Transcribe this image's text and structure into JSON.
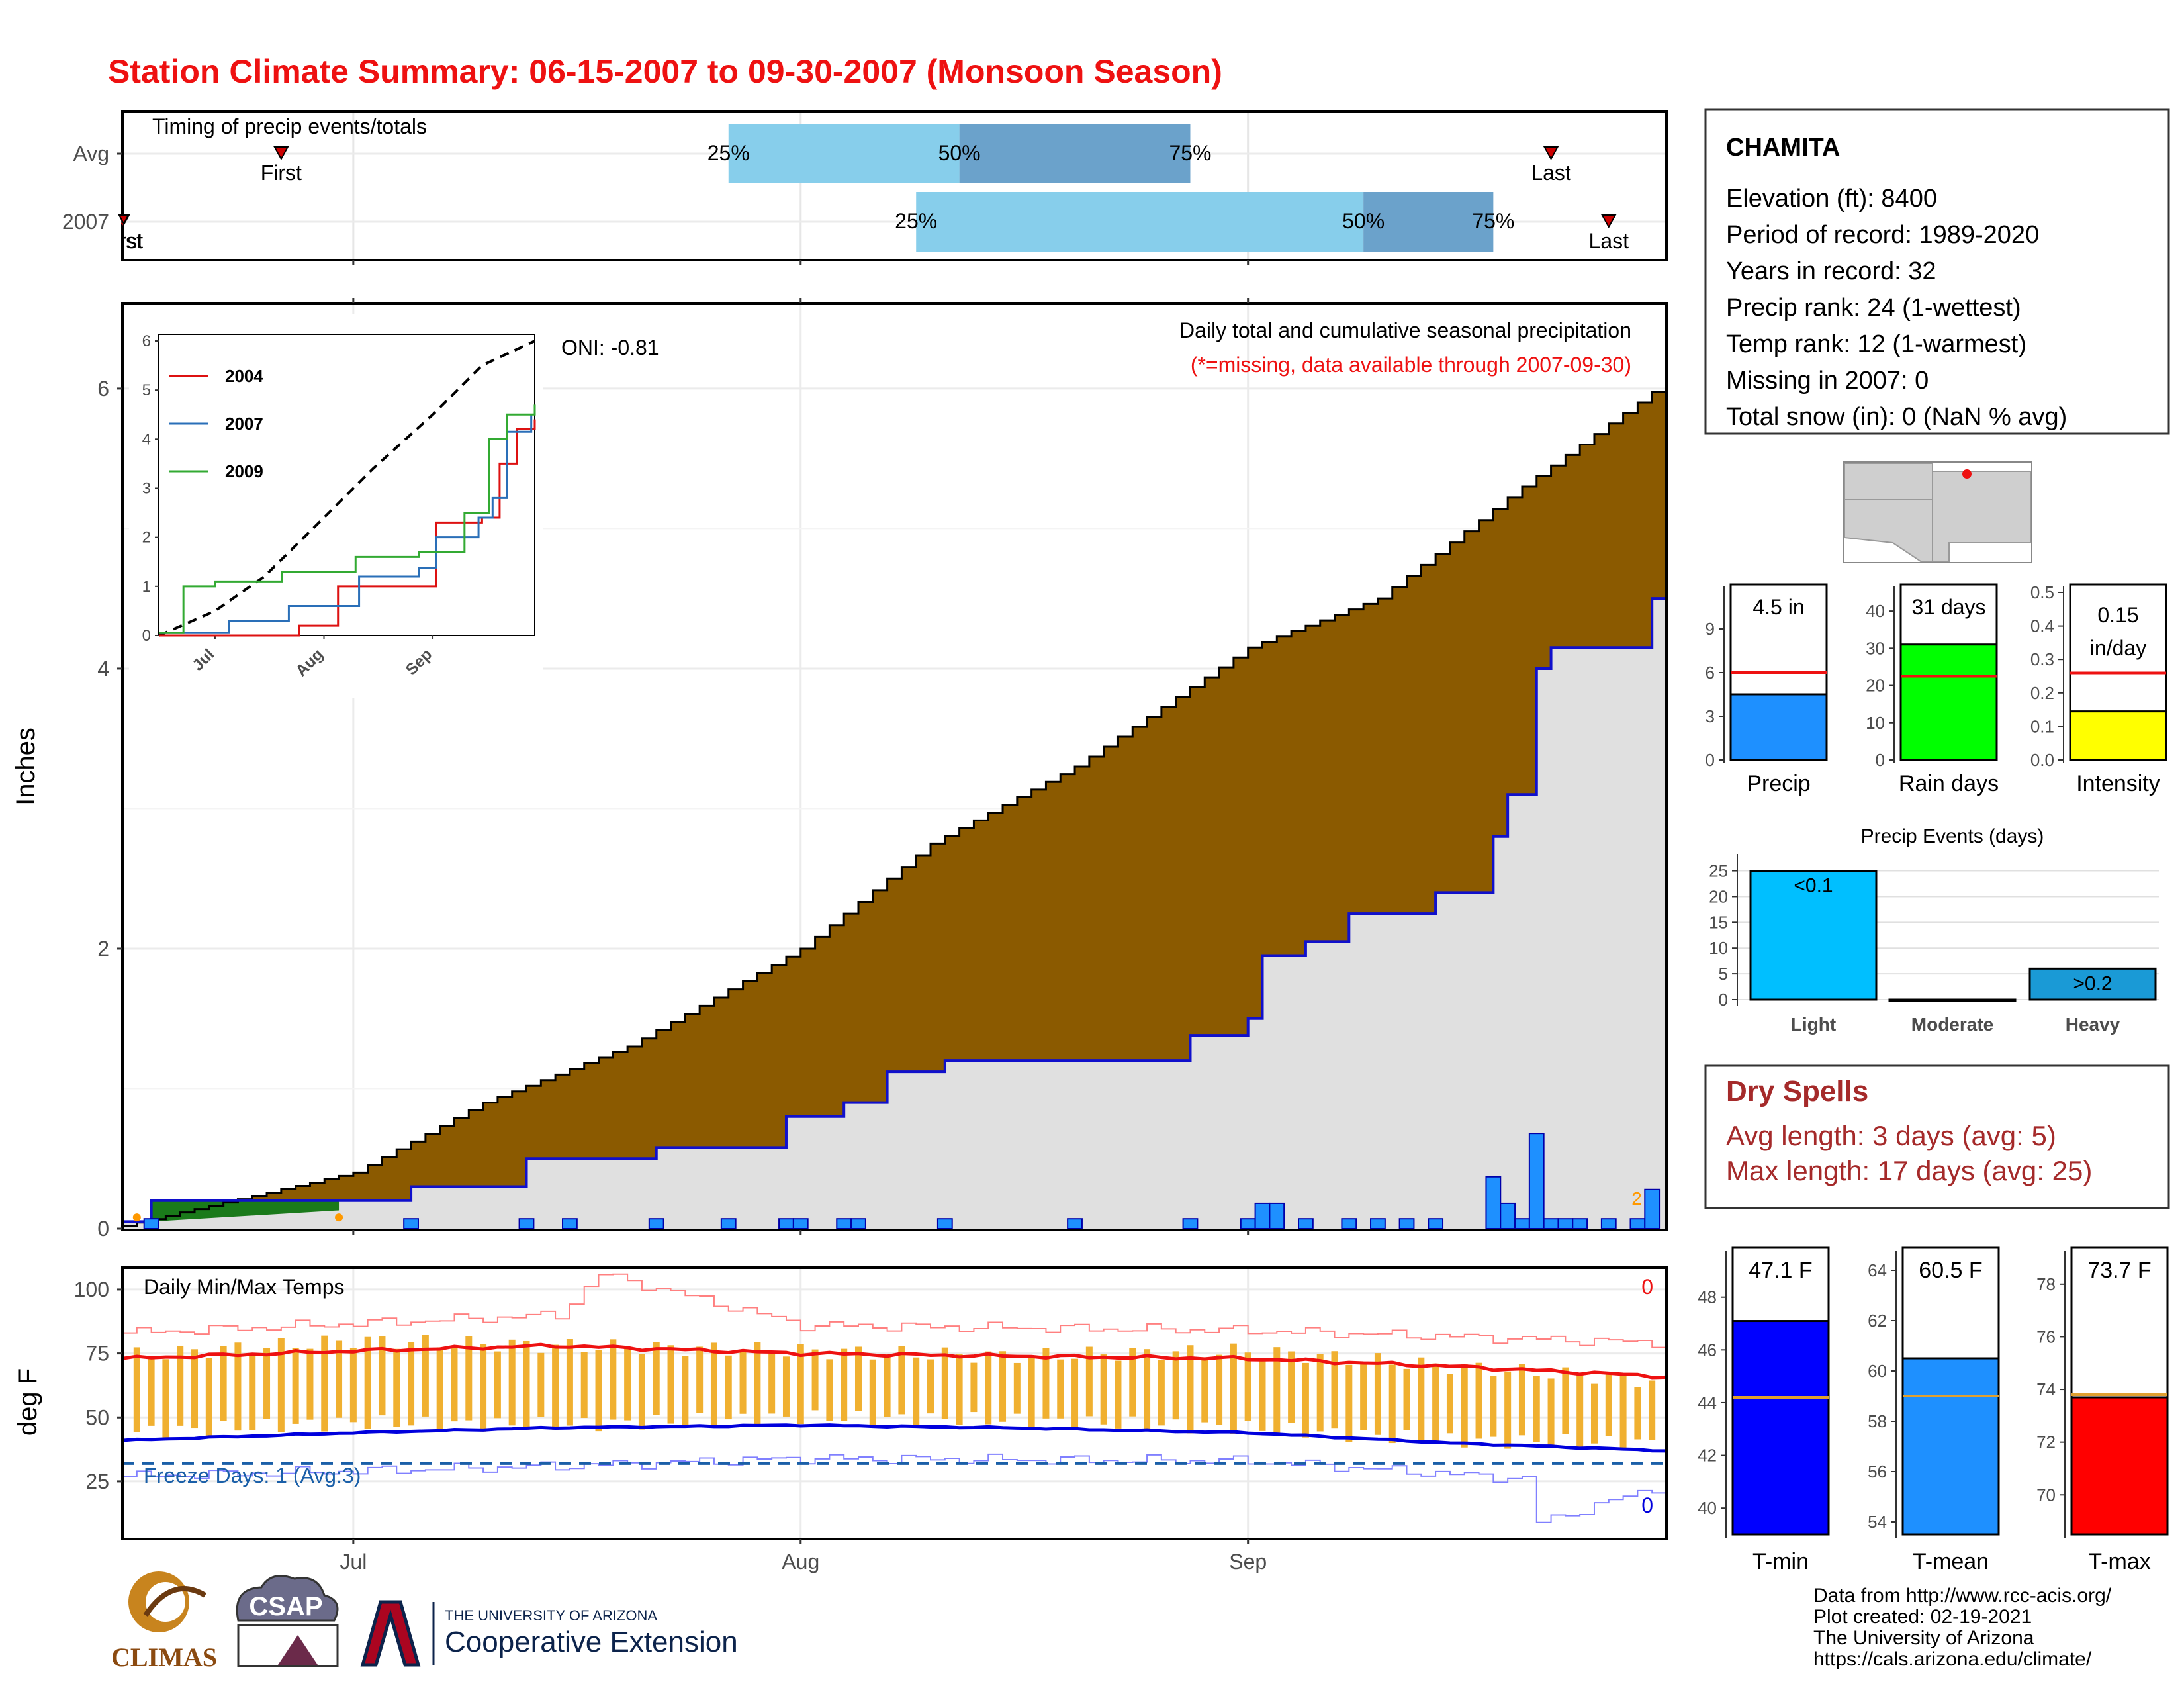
{
  "title": "Station Climate Summary: 06-15-2007 to 09-30-2007 (Monsoon Season)",
  "colors": {
    "title": "#ee1111",
    "cum_fill": "#8b5a00",
    "cum_2007_fill": "#e0e0e0",
    "cum_2007_line": "#1010cc",
    "daily_bar": "#1e90ff",
    "early_fill": "#1a7a1a",
    "timing_light": "#87ceeb",
    "timing_dark": "#6ba2cb",
    "tmin_line": "#0000dd",
    "tmax_line": "#ee1111",
    "range_bar": "#f0b030",
    "dry_spell": "#a52a2a"
  },
  "timing": {
    "label": "Timing of precip events/totals",
    "rows": [
      {
        "label": "Avg",
        "first": "First",
        "last": "Last",
        "p25": "25%",
        "p50": "50%",
        "p75": "75%",
        "first_date": "2007-06-26",
        "p25_date": "2007-07-27",
        "p50_date": "2007-08-12",
        "p75_date": "2007-08-28",
        "last_date": "2007-09-22"
      },
      {
        "label": "2007",
        "first": "First",
        "last": "Last",
        "p25": "25%",
        "p50": "50%",
        "p75": "75%",
        "first_date": "2007-06-15",
        "p25_date": "2007-08-09",
        "p50_date": "2007-09-09",
        "p75_date": "2007-09-18",
        "last_date": "2007-09-26"
      }
    ]
  },
  "precip_panel": {
    "ylabel": "Inches",
    "oni": "ONI: -0.81",
    "note1": "Daily total and cumulative seasonal precipitation",
    "note2": "(*=missing, data available through 2007-09-30)",
    "corner_mark": "2",
    "yticks": [
      "0",
      "2",
      "4",
      "6"
    ]
  },
  "inset": {
    "yticks": [
      "0",
      "1",
      "2",
      "3",
      "4",
      "5",
      "6"
    ],
    "xticks": [
      "Jul",
      "Aug",
      "Sep"
    ],
    "legend": [
      {
        "name": "2004",
        "color": "#dd1111"
      },
      {
        "name": "2007",
        "color": "#2a6fb8"
      },
      {
        "name": "2009",
        "color": "#33aa33"
      }
    ]
  },
  "temp_panel": {
    "ylabel": "deg F",
    "label": "Daily Min/Max Temps",
    "freeze": "Freeze Days: 1 (Avg:3)",
    "max_count": "0",
    "min_count": "0",
    "yticks": [
      "25",
      "50",
      "75",
      "100"
    ]
  },
  "xaxis": {
    "ticks": [
      "Jul",
      "Aug",
      "Sep"
    ]
  },
  "info": {
    "station": "CHAMITA",
    "lines": [
      "Elevation (ft): 8400",
      "Period of record: 1989-2020",
      "Years in record: 32",
      "Precip rank: 24 (1-wettest)",
      "Temp rank: 12 (1-warmest)",
      "Missing in 2007: 0",
      "Total snow (in): 0 (NaN % avg)"
    ]
  },
  "summary_bars": [
    {
      "label": "Precip",
      "value_text": "4.5 in",
      "value": 4.5,
      "avg": 6.0,
      "ymax": 11.5,
      "ticks": [
        0,
        3,
        6,
        9
      ],
      "color": "#1e90ff"
    },
    {
      "label": "Rain days",
      "value_text": "31 days",
      "value": 31,
      "avg": 22.5,
      "ymax": 45,
      "ticks": [
        0,
        10,
        20,
        30,
        40
      ],
      "color": "#00ff00"
    },
    {
      "label": "Intensity",
      "value_text": "0.15 in/day",
      "value": 0.145,
      "avg": 0.26,
      "ymax": 0.5,
      "ticks": [
        0.0,
        0.1,
        0.2,
        0.3,
        0.4,
        0.5
      ],
      "color": "#ffff00"
    }
  ],
  "precip_events": {
    "title": "Precip Events (days)",
    "categories": [
      "Light",
      "Moderate",
      "Heavy"
    ],
    "values": [
      25,
      0,
      6
    ],
    "labels": [
      "<0.1",
      "",
      ">0.2"
    ],
    "colors": [
      "#00bfff",
      "#00bfff",
      "#1a9ad6"
    ],
    "ticks": [
      0,
      5,
      10,
      15,
      20,
      25
    ]
  },
  "dry_spells": {
    "title": "Dry Spells",
    "avg": "Avg length: 3 days (avg: 5)",
    "max": "Max length: 17 days (avg: 25)"
  },
  "temp_bars": [
    {
      "label": "T-min",
      "value_text": "47.1 F",
      "value": 47.1,
      "avg": 44.2,
      "ymin": 39,
      "ymax": 49.5,
      "ticks": [
        40,
        42,
        44,
        46,
        48
      ],
      "color": "#0000ff"
    },
    {
      "label": "T-mean",
      "value_text": "60.5 F",
      "value": 60.5,
      "avg": 59.0,
      "ymin": 53.5,
      "ymax": 64.5,
      "ticks": [
        54,
        56,
        58,
        60,
        62,
        64
      ],
      "color": "#1e90ff"
    },
    {
      "label": "T-max",
      "value_text": "73.7 F",
      "value": 73.7,
      "avg": 73.8,
      "ymin": 68.5,
      "ymax": 79,
      "ticks": [
        70,
        72,
        74,
        76,
        78
      ],
      "color": "#ff0000"
    }
  ],
  "credits": [
    "Data from http://www.rcc-acis.org/",
    "Plot created: 02-19-2021",
    "The University of Arizona",
    "https://cals.arizona.edu/climate/"
  ],
  "logos": {
    "climas": "CLIMAS",
    "csap": "CSAP",
    "ua_small": "THE UNIVERSITY OF ARIZONA",
    "ua_big": "Cooperative Extension"
  },
  "chart_data": [
    {
      "type": "area",
      "title": "Daily total and cumulative seasonal precipitation",
      "ylabel": "Inches",
      "x_start": "2007-06-15",
      "x_end": "2007-09-30",
      "ylim": [
        0,
        6.6
      ],
      "series": [
        {
          "name": "avg cumulative",
          "x": [
            "2007-06-15",
            "2007-07-01",
            "2007-07-10",
            "2007-07-20",
            "2007-08-01",
            "2007-08-10",
            "2007-08-20",
            "2007-09-01",
            "2007-09-10",
            "2007-09-20",
            "2007-09-30"
          ],
          "values": [
            0.02,
            0.4,
            0.9,
            1.3,
            2.0,
            2.75,
            3.3,
            4.15,
            4.5,
            5.3,
            6.05
          ]
        },
        {
          "name": "2007 cumulative",
          "x": [
            "2007-06-15",
            "2007-06-17",
            "2007-07-05",
            "2007-07-13",
            "2007-07-22",
            "2007-07-31",
            "2007-08-04",
            "2007-08-07",
            "2007-08-11",
            "2007-08-28",
            "2007-09-01",
            "2007-09-02",
            "2007-09-05",
            "2007-09-08",
            "2007-09-14",
            "2007-09-18",
            "2007-09-19",
            "2007-09-21",
            "2007-09-22",
            "2007-09-29"
          ],
          "values": [
            0.05,
            0.2,
            0.3,
            0.5,
            0.58,
            0.8,
            0.9,
            1.12,
            1.2,
            1.38,
            1.5,
            1.95,
            2.05,
            2.25,
            2.4,
            2.8,
            3.1,
            4.0,
            4.15,
            4.5
          ]
        },
        {
          "name": "daily",
          "x": [
            "2007-06-17",
            "2007-07-05",
            "2007-07-13",
            "2007-07-16",
            "2007-07-22",
            "2007-07-27",
            "2007-07-31",
            "2007-08-01",
            "2007-08-04",
            "2007-08-05",
            "2007-08-11",
            "2007-08-20",
            "2007-08-28",
            "2007-09-01",
            "2007-09-02",
            "2007-09-03",
            "2007-09-05",
            "2007-09-08",
            "2007-09-10",
            "2007-09-12",
            "2007-09-14",
            "2007-09-18",
            "2007-09-19",
            "2007-09-20",
            "2007-09-21",
            "2007-09-22",
            "2007-09-23",
            "2007-09-24",
            "2007-09-26",
            "2007-09-28",
            "2007-09-29"
          ],
          "values": [
            0.07,
            0.07,
            0.07,
            0.07,
            0.07,
            0.07,
            0.07,
            0.07,
            0.07,
            0.07,
            0.07,
            0.07,
            0.07,
            0.07,
            0.18,
            0.18,
            0.07,
            0.07,
            0.07,
            0.07,
            0.07,
            0.37,
            0.18,
            0.07,
            0.68,
            0.07,
            0.07,
            0.07,
            0.07,
            0.07,
            0.28
          ]
        }
      ]
    },
    {
      "type": "line",
      "title": "",
      "x_start": "2007-06-15",
      "x_end": "2007-09-30",
      "ylim": [
        0,
        6
      ],
      "series": [
        {
          "name": "",
          "x": [
            "2007-06-15",
            "2007-07-01",
            "2007-07-15",
            "2007-08-01",
            "2007-08-15",
            "2007-09-01",
            "2007-09-15",
            "2007-09-30"
          ],
          "values": [
            0,
            0.5,
            1.2,
            2.4,
            3.4,
            4.5,
            5.5,
            6.0
          ]
        },
        {
          "name": "2004",
          "x": [
            "2007-06-15",
            "2007-07-25",
            "2007-08-05",
            "2007-08-28",
            "2007-09-02",
            "2007-09-15",
            "2007-09-20",
            "2007-09-25",
            "2007-09-30"
          ],
          "values": [
            0,
            0.2,
            1.0,
            1.0,
            2.3,
            2.4,
            3.5,
            4.2,
            4.4
          ]
        },
        {
          "name": "2007",
          "x": [
            "2007-06-15",
            "2007-07-05",
            "2007-07-22",
            "2007-08-11",
            "2007-08-28",
            "2007-09-02",
            "2007-09-14",
            "2007-09-18",
            "2007-09-22",
            "2007-09-29"
          ],
          "values": [
            0.05,
            0.3,
            0.6,
            1.2,
            1.38,
            2.0,
            2.4,
            2.8,
            4.15,
            4.5
          ]
        },
        {
          "name": "2009",
          "x": [
            "2007-06-15",
            "2007-06-22",
            "2007-07-01",
            "2007-07-20",
            "2007-08-10",
            "2007-08-28",
            "2007-09-10",
            "2007-09-17",
            "2007-09-22",
            "2007-09-30"
          ],
          "values": [
            0.05,
            1.0,
            1.1,
            1.3,
            1.6,
            1.7,
            2.5,
            4.0,
            4.5,
            4.7
          ]
        }
      ]
    },
    {
      "type": "line",
      "title": "Daily Min/Max Temps",
      "ylabel": "deg F",
      "x_start": "2007-06-15",
      "x_end": "2007-09-30",
      "ylim": [
        3,
        108
      ],
      "series": [
        {
          "name": "avg max",
          "x": [
            "2007-06-15",
            "2007-07-01",
            "2007-07-15",
            "2007-08-01",
            "2007-08-15",
            "2007-09-01",
            "2007-09-15",
            "2007-09-30"
          ],
          "values": [
            73,
            76,
            78,
            75,
            74,
            73,
            70,
            66
          ]
        },
        {
          "name": "avg min",
          "x": [
            "2007-06-15",
            "2007-07-01",
            "2007-07-15",
            "2007-08-01",
            "2007-08-15",
            "2007-09-01",
            "2007-09-15",
            "2007-09-30"
          ],
          "values": [
            41,
            44,
            46,
            47,
            46,
            44,
            40,
            37
          ]
        },
        {
          "name": "record max",
          "x": [
            "2007-06-15",
            "2007-07-15",
            "2007-07-18",
            "2007-08-01",
            "2007-09-01",
            "2007-09-30"
          ],
          "values": [
            83,
            90,
            106,
            86,
            84,
            79
          ]
        },
        {
          "name": "record min",
          "x": [
            "2007-06-15",
            "2007-07-15",
            "2007-08-01",
            "2007-09-01",
            "2007-09-20",
            "2007-09-21",
            "2007-09-30"
          ],
          "values": [
            27,
            31,
            34,
            33,
            26,
            9,
            24
          ]
        },
        {
          "name": "freeze line",
          "x": [
            "2007-06-15",
            "2007-09-30"
          ],
          "values": [
            32,
            32
          ]
        },
        {
          "name": "2007 daily",
          "x": [
            "2007-06-15",
            "2007-07-01",
            "2007-07-15",
            "2007-08-01",
            "2007-08-15",
            "2007-09-01",
            "2007-09-15",
            "2007-09-30"
          ],
          "low": [
            44,
            48,
            47,
            50,
            49,
            46,
            41,
            40
          ],
          "high": [
            74,
            80,
            78,
            76,
            74,
            76,
            70,
            64
          ]
        }
      ]
    },
    {
      "type": "bar",
      "title": "",
      "categories": [
        "Precip",
        "Rain days",
        "Intensity"
      ],
      "values": [
        4.5,
        31,
        0.15
      ],
      "averages": [
        6.0,
        22.5,
        0.26
      ]
    },
    {
      "type": "bar",
      "title": "Precip Events (days)",
      "categories": [
        "Light",
        "Moderate",
        "Heavy"
      ],
      "values": [
        25,
        0,
        6
      ]
    },
    {
      "type": "bar",
      "title": "",
      "categories": [
        "T-min",
        "T-mean",
        "T-max"
      ],
      "values": [
        47.1,
        60.5,
        73.7
      ],
      "averages": [
        44.2,
        59.0,
        73.8
      ]
    }
  ]
}
